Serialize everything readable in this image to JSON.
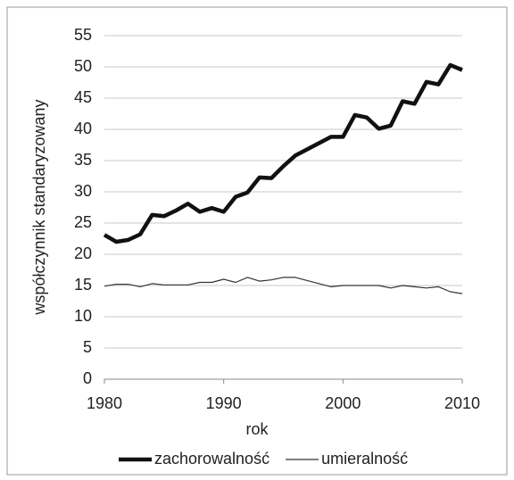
{
  "chart_data": {
    "type": "line",
    "x_label": "rok",
    "y_label": "współczynnik standaryzowany",
    "x": [
      1980,
      1981,
      1982,
      1983,
      1984,
      1985,
      1986,
      1987,
      1988,
      1989,
      1990,
      1991,
      1992,
      1993,
      1994,
      1995,
      1996,
      1997,
      1998,
      1999,
      2000,
      2001,
      2002,
      2003,
      2004,
      2005,
      2006,
      2007,
      2008,
      2009,
      2010
    ],
    "series": [
      {
        "name": "zachorowalność",
        "color": "#111111",
        "values": [
          23.1,
          22.0,
          22.3,
          23.2,
          26.3,
          26.1,
          27.0,
          28.1,
          26.8,
          27.4,
          26.8,
          29.2,
          29.9,
          32.3,
          32.2,
          34.1,
          35.8,
          36.8,
          37.8,
          38.8,
          38.8,
          42.3,
          41.9,
          40.1,
          40.6,
          44.5,
          44.1,
          47.6,
          47.2,
          50.3,
          49.5
        ]
      },
      {
        "name": "umieralność",
        "color": "#333333",
        "values": [
          14.9,
          15.2,
          15.2,
          14.8,
          15.3,
          15.1,
          15.1,
          15.1,
          15.5,
          15.5,
          16.0,
          15.5,
          16.3,
          15.7,
          15.9,
          16.3,
          16.3,
          15.8,
          15.3,
          14.8,
          15.0,
          15.0,
          15.0,
          15.0,
          14.6,
          15.0,
          14.8,
          14.6,
          14.8,
          14.0,
          13.7
        ]
      }
    ],
    "xlim": [
      1980,
      2010
    ],
    "xticks": [
      1980,
      1990,
      2000,
      2010
    ],
    "ylim": [
      0,
      55
    ],
    "yticks": [
      0,
      5,
      10,
      15,
      20,
      25,
      30,
      35,
      40,
      45,
      50,
      55
    ],
    "grid": true,
    "legend": "bottom"
  }
}
